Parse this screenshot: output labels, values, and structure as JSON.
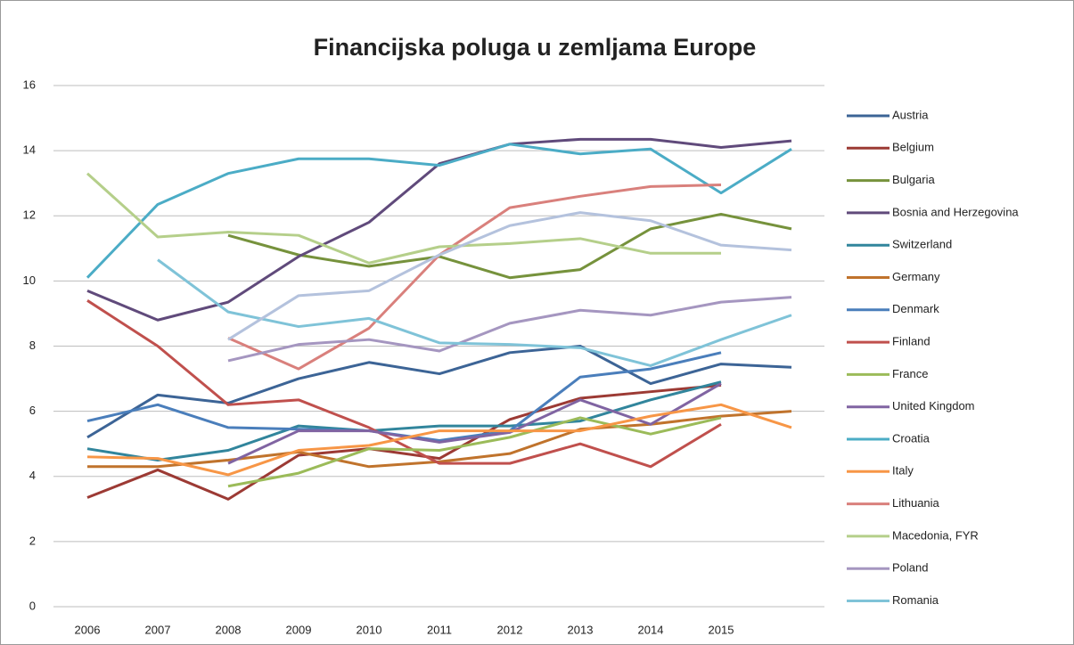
{
  "chart_data": {
    "type": "line",
    "title": "Financijska poluga u zemljama Europe",
    "categories": [
      "2006",
      "2007",
      "2008",
      "2009",
      "2010",
      "2011",
      "2012",
      "2013",
      "2014",
      "2015",
      null
    ],
    "ylim": [
      0,
      16
    ],
    "yticks": [
      0,
      2,
      4,
      6,
      8,
      10,
      12,
      14,
      16
    ],
    "grid": true,
    "legend": "right",
    "series": [
      {
        "name": "Austria",
        "color": "#3c6496",
        "values": [
          5.2,
          6.5,
          6.25,
          7.0,
          7.5,
          7.15,
          7.8,
          8.0,
          6.85,
          7.45,
          7.35
        ]
      },
      {
        "name": "Belgium",
        "color": "#9c3a34",
        "values": [
          3.35,
          4.2,
          3.3,
          4.65,
          4.85,
          4.55,
          5.75,
          6.4,
          6.6,
          6.8,
          null
        ]
      },
      {
        "name": "Bulgaria",
        "color": "#76923c",
        "values": [
          null,
          null,
          11.4,
          10.8,
          10.45,
          10.75,
          10.1,
          10.35,
          11.6,
          12.05,
          11.6
        ]
      },
      {
        "name": "Bosnia and Herzegovina",
        "color": "#604a7b",
        "values": [
          9.7,
          8.8,
          9.35,
          10.75,
          11.8,
          13.6,
          14.2,
          14.35,
          14.35,
          14.1,
          14.3
        ]
      },
      {
        "name": "Switzerland",
        "color": "#31859c",
        "values": [
          4.85,
          4.5,
          4.8,
          5.55,
          5.4,
          5.55,
          5.55,
          5.7,
          6.35,
          6.9,
          null
        ]
      },
      {
        "name": "Germany",
        "color": "#c0732c",
        "values": [
          4.3,
          4.3,
          4.5,
          4.75,
          4.3,
          4.45,
          4.7,
          5.45,
          5.6,
          5.85,
          6.0
        ]
      },
      {
        "name": "Denmark",
        "color": "#4a7ebb",
        "values": [
          5.7,
          6.2,
          5.5,
          5.45,
          5.4,
          5.1,
          5.4,
          7.05,
          7.3,
          7.8,
          null
        ]
      },
      {
        "name": "Finland",
        "color": "#c0504d",
        "values": [
          9.4,
          8.0,
          6.2,
          6.35,
          5.5,
          4.4,
          4.4,
          5.0,
          4.3,
          5.6,
          null
        ]
      },
      {
        "name": "France",
        "color": "#9bbb59",
        "values": [
          null,
          null,
          3.7,
          4.1,
          4.85,
          4.8,
          5.2,
          5.8,
          5.3,
          5.8,
          null
        ]
      },
      {
        "name": "United Kingdom",
        "color": "#8064a2",
        "values": [
          null,
          null,
          4.4,
          5.4,
          5.4,
          5.05,
          5.35,
          6.35,
          5.6,
          6.85,
          null
        ]
      },
      {
        "name": "Croatia",
        "color": "#4bacc6",
        "values": [
          10.1,
          12.35,
          13.3,
          13.75,
          13.75,
          13.55,
          14.2,
          13.9,
          14.05,
          12.7,
          14.05
        ]
      },
      {
        "name": "Italy",
        "color": "#f79646",
        "values": [
          4.6,
          4.55,
          4.05,
          4.8,
          4.95,
          5.4,
          5.4,
          5.4,
          5.85,
          6.2,
          5.5
        ]
      },
      {
        "name": "Lithuania",
        "color": "#d9807c",
        "values": [
          null,
          null,
          8.25,
          7.3,
          8.55,
          10.8,
          12.25,
          12.6,
          12.9,
          12.95,
          null
        ]
      },
      {
        "name": "Macedonia, FYR",
        "color": "#b5cf8a",
        "values": [
          13.3,
          11.35,
          11.5,
          11.4,
          10.55,
          11.05,
          11.15,
          11.3,
          10.85,
          10.85,
          null
        ]
      },
      {
        "name": "Poland",
        "color": "#a596c0",
        "values": [
          null,
          null,
          7.55,
          8.05,
          8.2,
          7.85,
          8.7,
          9.1,
          8.95,
          9.35,
          9.5
        ]
      },
      {
        "name": "Romania",
        "color": "#7fc3d8",
        "values": [
          null,
          10.65,
          9.05,
          8.6,
          8.85,
          8.1,
          8.05,
          7.95,
          7.4,
          8.2,
          8.95
        ]
      },
      {
        "color": "#b4c2dd",
        "values": [
          null,
          null,
          8.2,
          9.55,
          9.7,
          10.8,
          11.7,
          12.1,
          11.85,
          11.1,
          10.95
        ]
      }
    ]
  }
}
